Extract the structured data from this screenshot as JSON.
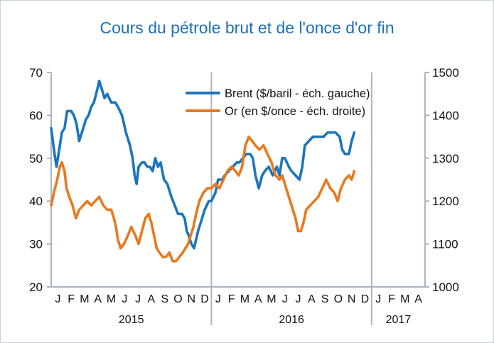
{
  "chart_data": {
    "type": "line",
    "title": "Cours du pétrole brut et de l'once d'or fin",
    "left_axis": {
      "ylim": [
        20,
        70
      ],
      "ticks": [
        "20",
        "30",
        "40",
        "50",
        "60",
        "70"
      ]
    },
    "right_axis": {
      "ylim": [
        1000,
        1500
      ],
      "ticks": [
        "1000",
        "1100",
        "1200",
        "1300",
        "1400",
        "1500"
      ]
    },
    "x_axis": {
      "months": [
        "J",
        "F",
        "M",
        "A",
        "M",
        "J",
        "J",
        "A",
        "S",
        "O",
        "N",
        "D",
        "J",
        "F",
        "M",
        "A",
        "M",
        "J",
        "J",
        "A",
        "S",
        "O",
        "N",
        "D",
        "J",
        "F",
        "M",
        "A"
      ],
      "years": [
        "2015",
        "2016",
        "2017"
      ],
      "range_months": [
        0,
        28
      ]
    },
    "legend_position": "top-right",
    "grid": false,
    "series": [
      {
        "name": "Brent ($/baril - éch. gauche)",
        "color": "#1c75bc",
        "axis": "left",
        "points": [
          [
            0,
            57
          ],
          [
            0.25,
            51
          ],
          [
            0.4,
            48
          ],
          [
            0.6,
            52
          ],
          [
            0.8,
            56
          ],
          [
            1.0,
            57
          ],
          [
            1.2,
            61
          ],
          [
            1.5,
            61
          ],
          [
            1.7,
            60
          ],
          [
            1.9,
            58
          ],
          [
            2.1,
            54
          ],
          [
            2.3,
            56
          ],
          [
            2.6,
            59
          ],
          [
            2.8,
            60
          ],
          [
            3.0,
            62
          ],
          [
            3.2,
            63
          ],
          [
            3.45,
            66
          ],
          [
            3.6,
            68
          ],
          [
            3.8,
            66
          ],
          [
            4.0,
            64
          ],
          [
            4.2,
            65
          ],
          [
            4.5,
            63
          ],
          [
            4.8,
            63
          ],
          [
            5.0,
            62
          ],
          [
            5.3,
            60
          ],
          [
            5.6,
            56
          ],
          [
            5.9,
            53
          ],
          [
            6.1,
            50
          ],
          [
            6.25,
            46
          ],
          [
            6.4,
            44
          ],
          [
            6.55,
            48
          ],
          [
            6.8,
            49
          ],
          [
            7.0,
            49
          ],
          [
            7.2,
            48
          ],
          [
            7.4,
            48
          ],
          [
            7.6,
            47
          ],
          [
            7.8,
            50
          ],
          [
            8.0,
            48
          ],
          [
            8.2,
            49
          ],
          [
            8.45,
            45
          ],
          [
            8.7,
            44
          ],
          [
            9.0,
            41
          ],
          [
            9.25,
            39
          ],
          [
            9.5,
            37
          ],
          [
            9.8,
            37
          ],
          [
            10.0,
            36
          ],
          [
            10.15,
            33
          ],
          [
            10.3,
            32
          ],
          [
            10.5,
            30
          ],
          [
            10.7,
            29
          ],
          [
            10.85,
            31
          ],
          [
            11.0,
            33
          ],
          [
            11.2,
            35
          ],
          [
            11.5,
            38
          ],
          [
            11.8,
            40
          ],
          [
            12.0,
            40
          ],
          [
            12.3,
            42
          ],
          [
            12.5,
            45
          ],
          [
            12.8,
            45
          ],
          [
            13.0,
            46
          ],
          [
            13.3,
            47
          ],
          [
            13.6,
            48
          ],
          [
            13.9,
            49
          ],
          [
            14.1,
            49
          ],
          [
            14.35,
            50
          ],
          [
            14.6,
            51
          ],
          [
            14.9,
            51
          ],
          [
            15.1,
            50
          ],
          [
            15.3,
            46
          ],
          [
            15.55,
            43
          ],
          [
            15.8,
            46
          ],
          [
            16.0,
            47
          ],
          [
            16.3,
            48
          ],
          [
            16.6,
            46
          ],
          [
            16.9,
            48
          ],
          [
            17.1,
            46
          ],
          [
            17.3,
            50
          ],
          [
            17.5,
            50
          ],
          [
            17.8,
            48
          ],
          [
            18.0,
            47
          ],
          [
            18.3,
            46
          ],
          [
            18.6,
            45
          ],
          [
            18.8,
            48
          ],
          [
            19.0,
            53
          ],
          [
            19.3,
            54
          ],
          [
            19.6,
            55
          ],
          [
            19.9,
            55
          ],
          [
            20.1,
            55
          ],
          [
            20.4,
            55
          ],
          [
            20.7,
            56
          ],
          [
            21.0,
            56
          ],
          [
            21.3,
            56
          ],
          [
            21.6,
            55
          ],
          [
            21.8,
            52
          ],
          [
            22.0,
            51
          ],
          [
            22.3,
            51
          ],
          [
            22.5,
            54
          ],
          [
            22.7,
            56
          ]
        ]
      },
      {
        "name": "Or (en $/once - éch. droite)",
        "color": "#e8791e",
        "axis": "right",
        "points": [
          [
            0,
            1190
          ],
          [
            0.2,
            1220
          ],
          [
            0.45,
            1250
          ],
          [
            0.65,
            1280
          ],
          [
            0.8,
            1290
          ],
          [
            1.0,
            1270
          ],
          [
            1.15,
            1230
          ],
          [
            1.35,
            1210
          ],
          [
            1.6,
            1190
          ],
          [
            1.85,
            1160
          ],
          [
            2.1,
            1180
          ],
          [
            2.4,
            1190
          ],
          [
            2.7,
            1200
          ],
          [
            3.0,
            1190
          ],
          [
            3.3,
            1200
          ],
          [
            3.6,
            1210
          ],
          [
            3.9,
            1190
          ],
          [
            4.2,
            1180
          ],
          [
            4.5,
            1180
          ],
          [
            4.7,
            1160
          ],
          [
            4.85,
            1140
          ],
          [
            5.0,
            1110
          ],
          [
            5.2,
            1090
          ],
          [
            5.45,
            1100
          ],
          [
            5.75,
            1120
          ],
          [
            6.0,
            1140
          ],
          [
            6.3,
            1120
          ],
          [
            6.55,
            1100
          ],
          [
            6.8,
            1130
          ],
          [
            7.05,
            1160
          ],
          [
            7.3,
            1170
          ],
          [
            7.5,
            1150
          ],
          [
            7.7,
            1120
          ],
          [
            7.9,
            1090
          ],
          [
            8.1,
            1080
          ],
          [
            8.35,
            1070
          ],
          [
            8.6,
            1070
          ],
          [
            8.85,
            1080
          ],
          [
            9.1,
            1060
          ],
          [
            9.35,
            1060
          ],
          [
            9.6,
            1070
          ],
          [
            9.85,
            1080
          ],
          [
            10.05,
            1090
          ],
          [
            10.25,
            1100
          ],
          [
            10.45,
            1120
          ],
          [
            10.65,
            1140
          ],
          [
            10.85,
            1170
          ],
          [
            11.1,
            1200
          ],
          [
            11.4,
            1220
          ],
          [
            11.7,
            1230
          ],
          [
            12.0,
            1230
          ],
          [
            12.3,
            1240
          ],
          [
            12.6,
            1230
          ],
          [
            12.9,
            1250
          ],
          [
            13.2,
            1270
          ],
          [
            13.5,
            1280
          ],
          [
            13.8,
            1270
          ],
          [
            14.05,
            1260
          ],
          [
            14.3,
            1280
          ],
          [
            14.55,
            1330
          ],
          [
            14.8,
            1350
          ],
          [
            15.05,
            1340
          ],
          [
            15.3,
            1330
          ],
          [
            15.6,
            1320
          ],
          [
            15.9,
            1330
          ],
          [
            16.2,
            1310
          ],
          [
            16.5,
            1290
          ],
          [
            16.8,
            1260
          ],
          [
            17.1,
            1250
          ],
          [
            17.3,
            1260
          ],
          [
            17.6,
            1230
          ],
          [
            17.9,
            1200
          ],
          [
            18.1,
            1180
          ],
          [
            18.3,
            1160
          ],
          [
            18.5,
            1130
          ],
          [
            18.7,
            1130
          ],
          [
            18.9,
            1150
          ],
          [
            19.1,
            1180
          ],
          [
            19.4,
            1190
          ],
          [
            19.7,
            1200
          ],
          [
            20.0,
            1210
          ],
          [
            20.3,
            1230
          ],
          [
            20.6,
            1250
          ],
          [
            20.9,
            1230
          ],
          [
            21.2,
            1220
          ],
          [
            21.45,
            1200
          ],
          [
            21.7,
            1230
          ],
          [
            22.0,
            1250
          ],
          [
            22.3,
            1260
          ],
          [
            22.5,
            1250
          ],
          [
            22.7,
            1270
          ]
        ]
      }
    ]
  }
}
